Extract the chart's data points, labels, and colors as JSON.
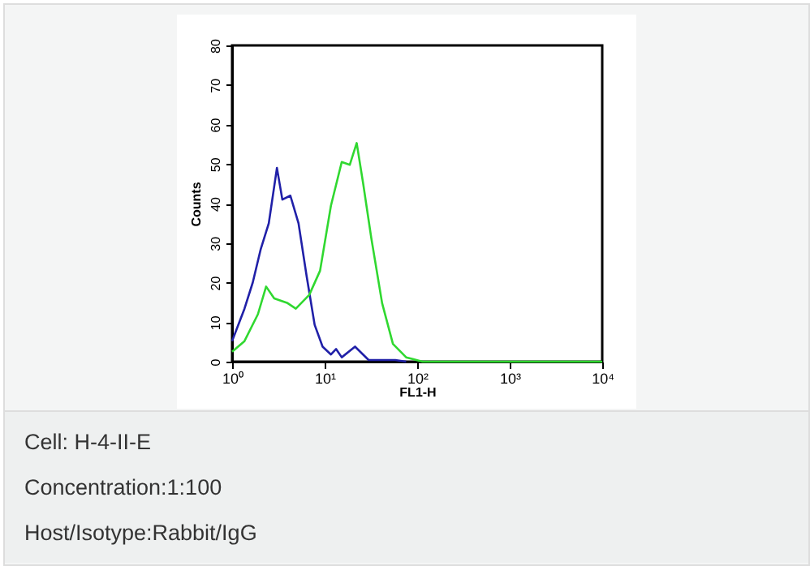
{
  "chart_data": {
    "type": "line",
    "xlabel": "FL1-H",
    "ylabel": "Counts",
    "xlim": [
      1,
      10000
    ],
    "xticks": [
      {
        "value": 1,
        "label": "10⁰"
      },
      {
        "value": 10,
        "label": "10¹"
      },
      {
        "value": 100,
        "label": "10²"
      },
      {
        "value": 1000,
        "label": "10³"
      },
      {
        "value": 10000,
        "label": "10⁴"
      }
    ],
    "ylim": [
      0,
      80
    ],
    "yticks": [
      0,
      10,
      20,
      30,
      40,
      50,
      60,
      70,
      80
    ],
    "log": "x",
    "grid": false,
    "legend": false,
    "marker": "none",
    "line_style": "solid",
    "series": [
      {
        "color": "#2020a8",
        "x": [
          1,
          1.11,
          1.36,
          1.67,
          2.04,
          2.49,
          3.05,
          3.49,
          4.26,
          5.22,
          6.38,
          7.8,
          9.5,
          11.7,
          13.3,
          15.3,
          21.3,
          29.9,
          58,
          76
        ],
        "values": [
          5.2,
          8,
          13.4,
          20,
          28.5,
          35,
          49,
          41,
          42,
          35,
          21.7,
          9.3,
          3.8,
          1.8,
          3.2,
          1.1,
          3.8,
          0.4,
          0.4,
          0
        ]
      },
      {
        "color": "#30d830",
        "x": [
          1,
          1.36,
          1.9,
          2.33,
          2.85,
          3.98,
          4.88,
          6.82,
          8.92,
          11.7,
          15.3,
          18.7,
          22.2,
          26.1,
          31.9,
          41.8,
          54.7,
          76,
          114,
          224,
          10000
        ],
        "values": [
          2.5,
          5.2,
          12,
          19,
          16,
          14.8,
          13.4,
          16.9,
          23,
          39.5,
          50.5,
          49.8,
          55.3,
          45,
          31.3,
          14.8,
          4.5,
          1.1,
          0,
          0,
          0
        ]
      }
    ],
    "annotations": [
      "Cell: H-4-II-E",
      "Concentration:1:100",
      "Host/Isotype:Rabbit/IgG"
    ]
  }
}
